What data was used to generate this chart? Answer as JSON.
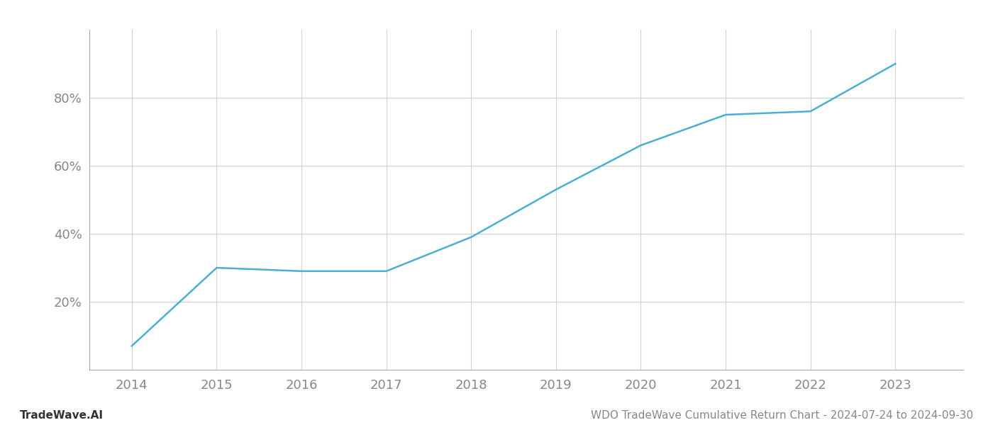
{
  "x_years": [
    2014,
    2015,
    2016,
    2017,
    2018,
    2019,
    2020,
    2021,
    2022,
    2023
  ],
  "y_values": [
    7,
    30,
    29,
    29,
    39,
    53,
    66,
    75,
    76,
    90
  ],
  "line_color": "#4bafd4",
  "line_width": 1.8,
  "background_color": "#ffffff",
  "grid_color": "#d0d0d0",
  "ylabel_ticks": [
    20,
    40,
    60,
    80
  ],
  "ylabel_labels": [
    "20%",
    "40%",
    "60%",
    "80%"
  ],
  "ylim": [
    0,
    100
  ],
  "xlim": [
    2013.5,
    2023.8
  ],
  "footnote_left": "TradeWave.AI",
  "footnote_right": "WDO TradeWave Cumulative Return Chart - 2024-07-24 to 2024-09-30",
  "tick_color": "#888888",
  "tick_fontsize": 13,
  "footnote_fontsize": 11,
  "spine_color": "#aaaaaa"
}
